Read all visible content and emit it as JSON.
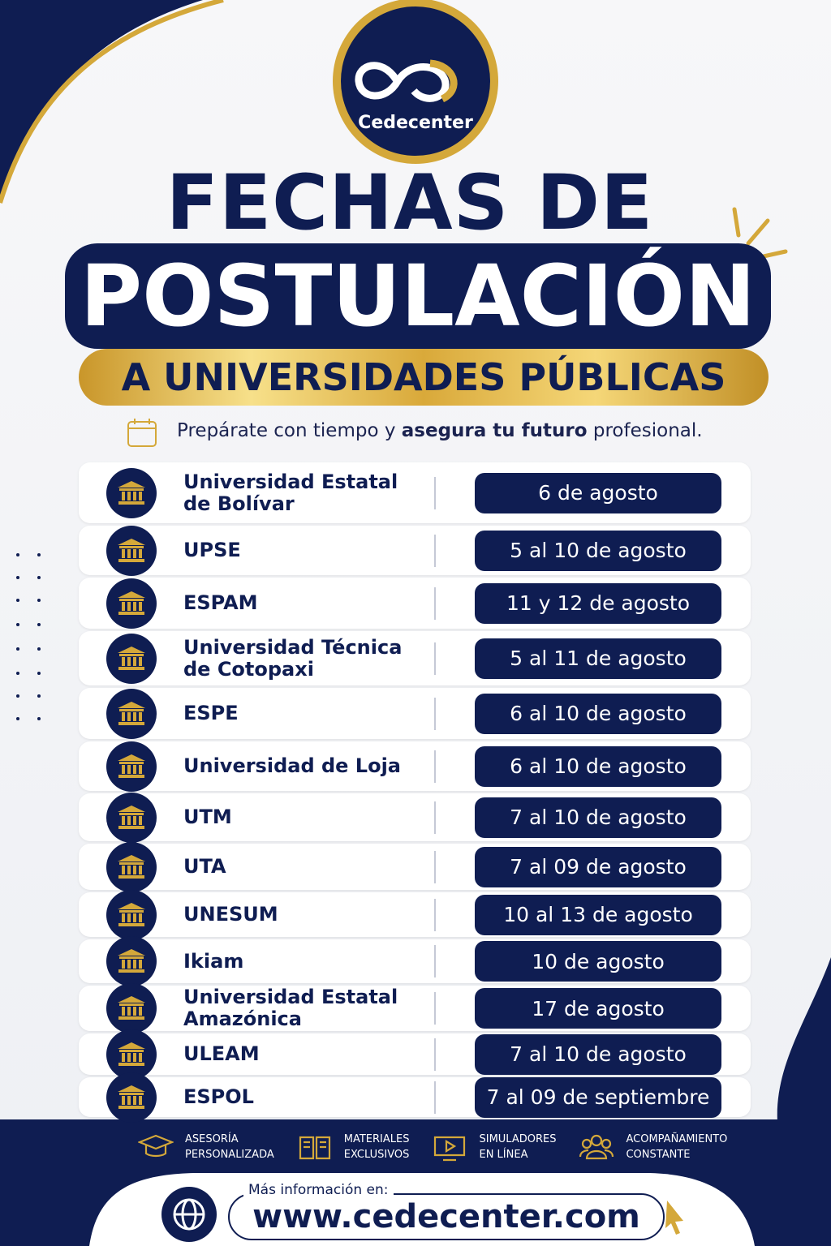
{
  "logo": {
    "text": "Cedecenter"
  },
  "header": {
    "title_line1": "FECHAS DE",
    "title_line2": "POSTULACIÓN",
    "ribbon": "A UNIVERSIDADES PÚBLICAS"
  },
  "tagline": {
    "before": "Prepárate con tiempo y ",
    "bold": "asegura tu futuro",
    "after": " profesional."
  },
  "universities": [
    {
      "name": [
        "Universidad Estatal",
        "de Bolívar"
      ],
      "date": "6 de agosto"
    },
    {
      "name": [
        "UPSE"
      ],
      "date": "5 al 10 de agosto"
    },
    {
      "name": [
        "ESPAM"
      ],
      "date": "11 y 12 de agosto"
    },
    {
      "name": [
        "Universidad Técnica",
        "de Cotopaxi"
      ],
      "date": "5 al 11 de agosto"
    },
    {
      "name": [
        "ESPE"
      ],
      "date": "6 al 10 de agosto"
    },
    {
      "name": [
        "Universidad de Loja"
      ],
      "date": "6 al 10 de agosto"
    },
    {
      "name": [
        "UTM"
      ],
      "date": "7 al 10 de agosto"
    },
    {
      "name": [
        "UTA"
      ],
      "date": "7 al 09 de agosto"
    },
    {
      "name": [
        "UNESUM"
      ],
      "date": "10 al 13 de agosto"
    },
    {
      "name": [
        "Ikiam"
      ],
      "date": "10 de agosto"
    },
    {
      "name": [
        "Universidad Estatal",
        "Amazónica"
      ],
      "date": "17 de agosto"
    },
    {
      "name": [
        "ULEAM"
      ],
      "date": "7 al 10 de agosto"
    },
    {
      "name": [
        "ESPOL"
      ],
      "date": "7 al 09 de septiembre"
    }
  ],
  "features": [
    {
      "lines": [
        "ASESORÍA",
        "PERSONALIZADA"
      ]
    },
    {
      "lines": [
        "MATERIALES",
        "EXCLUSIVOS"
      ]
    },
    {
      "lines": [
        "SIMULADORES",
        "EN LÍNEA"
      ]
    },
    {
      "lines": [
        "ACOMPAÑAMIENTO",
        "CONSTANTE"
      ]
    }
  ],
  "footer": {
    "label": "Más información en:",
    "url": "www.cedecenter.com"
  }
}
